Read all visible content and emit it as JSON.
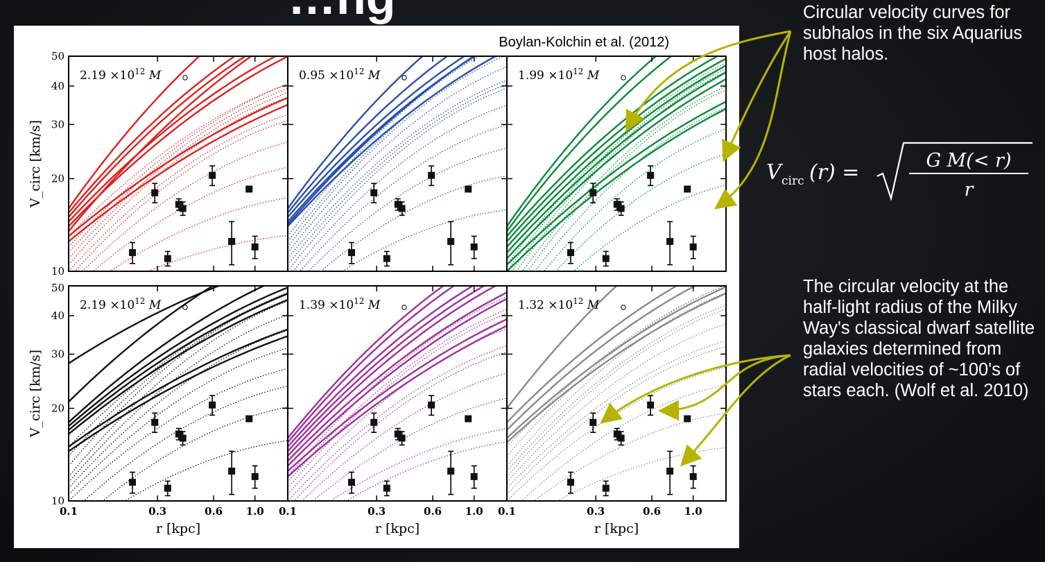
{
  "slide": {
    "title_fragment": "”…ng",
    "note_top": "Circular velocity curves for subhalos in the six Aquarius host halos.",
    "note_bottom": "The circular velocity at the half-light radius of the Milky Way's classical dwarf satellite galaxies determined from radial velocities of ~100's of stars each. (Wolf et al. 2010)",
    "formula_lhs": "V",
    "formula_sub": "circ",
    "formula_arg": "(r) =",
    "formula_num": "G M(< r)",
    "formula_den": "r",
    "arrow_color": "#b5b400",
    "text_color": "#ffffff"
  },
  "chart_data": {
    "type": "line",
    "citation": "Boylan-Kolchin et al. (2012)",
    "xlabel": "r [kpc]",
    "ylabel": "V_circ [km/s]",
    "x_scale": "log",
    "y_scale": "log",
    "xlim": [
      0.1,
      1.5
    ],
    "ylim": [
      10,
      50
    ],
    "x_ticks": [
      "0.1",
      "0.3",
      "0.6",
      "1.0"
    ],
    "x_tick_values": [
      0.1,
      0.3,
      0.6,
      1.0
    ],
    "y_ticks": [
      "10",
      "20",
      "30",
      "40",
      "50"
    ],
    "y_tick_values": [
      10,
      20,
      30,
      40,
      50
    ],
    "panels": [
      {
        "label": "2.19 ×10",
        "exp": "12",
        "unit": "M",
        "color": "#e02020",
        "solid": [
          [
            16,
            43
          ],
          [
            15.5,
            37
          ],
          [
            15,
            36
          ],
          [
            14.5,
            33
          ],
          [
            14,
            32
          ],
          [
            13.5,
            36
          ],
          [
            13,
            26
          ],
          [
            12.5,
            25
          ]
        ],
        "dotted": [
          [
            13,
            25
          ],
          [
            12,
            24
          ],
          [
            11.5,
            23
          ],
          [
            11,
            22
          ],
          [
            10.5,
            21
          ],
          [
            10,
            19
          ],
          [
            9.5,
            18
          ],
          [
            9,
            16
          ],
          [
            8.5,
            14
          ],
          [
            8,
            12
          ],
          [
            7.5,
            10
          ]
        ]
      },
      {
        "label": "0.95 ×10",
        "exp": "12",
        "unit": "M",
        "color": "#2a4fb0",
        "solid": [
          [
            16,
            42
          ],
          [
            15.5,
            38
          ],
          [
            15,
            36
          ],
          [
            14.5,
            35
          ],
          [
            14,
            33
          ],
          [
            14.2,
            36
          ]
        ],
        "dotted": [
          [
            13,
            30
          ],
          [
            12.5,
            28
          ],
          [
            12,
            27
          ],
          [
            11.5,
            25
          ],
          [
            11,
            23
          ],
          [
            10.5,
            22
          ],
          [
            10,
            21
          ],
          [
            9.5,
            19
          ],
          [
            9,
            17
          ],
          [
            8.5,
            15
          ],
          [
            8,
            13
          ],
          [
            7.5,
            11
          ]
        ]
      },
      {
        "label": "1.99 ×10",
        "exp": "12",
        "unit": "M",
        "color": "#0a8a3a",
        "solid": [
          [
            14,
            38
          ],
          [
            13.5,
            36
          ],
          [
            13,
            31
          ],
          [
            12.5,
            30
          ],
          [
            12,
            29
          ],
          [
            11.5,
            28
          ],
          [
            11,
            27
          ],
          [
            10.5,
            24
          ],
          [
            10,
            23
          ]
        ],
        "dotted": [
          [
            10.5,
            25
          ],
          [
            10,
            24
          ],
          [
            9.5,
            23
          ],
          [
            9,
            22
          ],
          [
            8.5,
            20
          ],
          [
            8,
            19
          ],
          [
            7.5,
            17
          ],
          [
            7,
            15
          ],
          [
            6.5,
            13
          ],
          [
            6,
            11
          ]
        ]
      },
      {
        "label": "2.19 ×10",
        "exp": "12",
        "unit": "M",
        "color": "#111111",
        "solid": [
          [
            28,
            44
          ],
          [
            21,
            43
          ],
          [
            18,
            36
          ],
          [
            17.5,
            34
          ],
          [
            17,
            33
          ],
          [
            16.5,
            32
          ],
          [
            15,
            27
          ],
          [
            14.5,
            26
          ]
        ],
        "dotted": [
          [
            15,
            29
          ],
          [
            14,
            28
          ],
          [
            13,
            27
          ],
          [
            12,
            25
          ],
          [
            11.5,
            23
          ],
          [
            11,
            21
          ],
          [
            10.5,
            19
          ],
          [
            10,
            17
          ],
          [
            9,
            15
          ],
          [
            8,
            13
          ],
          [
            7.5,
            11
          ]
        ]
      },
      {
        "label": "1.39 ×10",
        "exp": "12",
        "unit": "M",
        "color": "#a02ea0",
        "solid": [
          [
            16,
            38
          ],
          [
            15.5,
            37
          ],
          [
            15,
            35
          ],
          [
            14.5,
            34
          ],
          [
            14,
            33
          ],
          [
            13.5,
            31
          ],
          [
            13,
            30
          ],
          [
            12.5,
            27
          ],
          [
            12,
            26
          ]
        ],
        "dotted": [
          [
            12,
            26
          ],
          [
            11.5,
            24
          ],
          [
            11,
            23
          ],
          [
            10.5,
            21
          ],
          [
            10,
            19
          ],
          [
            9.5,
            18
          ],
          [
            9,
            16
          ],
          [
            8.5,
            14
          ],
          [
            8,
            12
          ],
          [
            7.5,
            11
          ]
        ]
      },
      {
        "label": "1.32 ×10",
        "exp": "12",
        "unit": "M",
        "color": "#8a8a8a",
        "solid": [
          [
            20,
            50
          ],
          [
            18,
            38
          ],
          [
            17,
            36
          ],
          [
            16,
            33
          ],
          [
            15.5,
            32
          ]
        ],
        "dotted": [
          [
            15,
            30
          ],
          [
            14,
            29
          ],
          [
            13,
            27
          ],
          [
            12.5,
            25
          ],
          [
            12,
            24
          ],
          [
            11.5,
            22
          ],
          [
            11,
            20
          ],
          [
            10.5,
            19
          ],
          [
            10,
            17
          ],
          [
            9,
            15
          ],
          [
            8.5,
            13
          ],
          [
            8,
            11
          ]
        ]
      }
    ],
    "points": [
      {
        "r": 0.22,
        "v": 11.5,
        "err": 0.9
      },
      {
        "r": 0.29,
        "v": 18.0,
        "err": 1.3
      },
      {
        "r": 0.34,
        "v": 11.0,
        "err": 0.6
      },
      {
        "r": 0.39,
        "v": 16.5,
        "err": 0.7
      },
      {
        "r": 0.41,
        "v": 16.0,
        "err": 0.8
      },
      {
        "r": 0.59,
        "v": 20.5,
        "err": 1.5
      },
      {
        "r": 0.75,
        "v": 12.5,
        "err": 2.0
      },
      {
        "r": 0.93,
        "v": 18.5,
        "err": 0.4
      },
      {
        "r": 1.0,
        "v": 12.0,
        "err": 1.0
      }
    ]
  }
}
